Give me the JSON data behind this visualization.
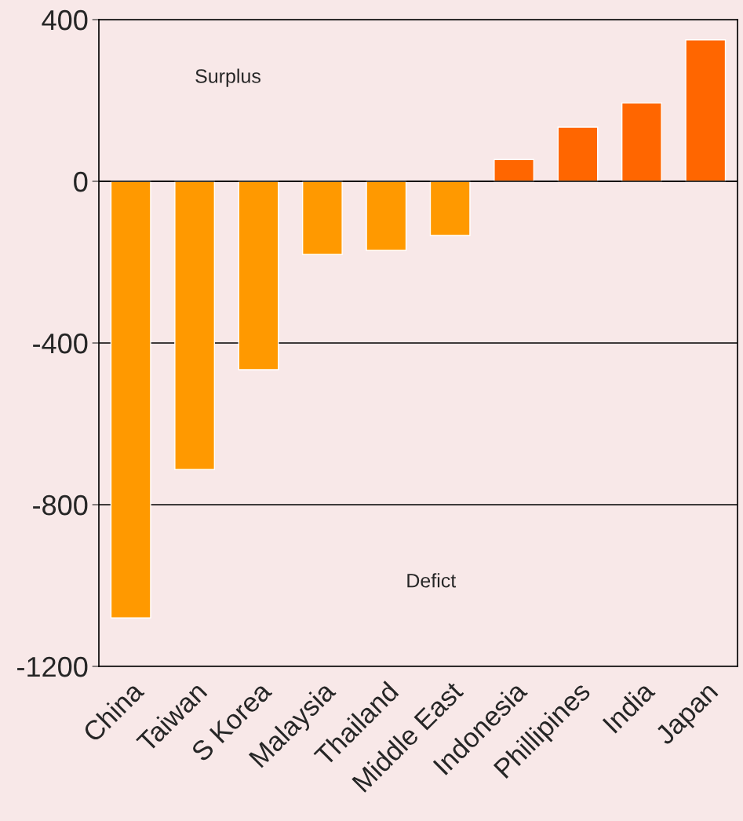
{
  "chart_data": {
    "type": "bar",
    "categories": [
      "China",
      "Taiwan",
      "S Korea",
      "Malaysia",
      "Thailand",
      "Middle East",
      "Indonesia",
      "Phillipines",
      "India",
      "Japan"
    ],
    "values": [
      -1080,
      -713,
      -466,
      -181,
      -171,
      -134,
      54,
      134,
      194,
      350
    ],
    "colors": [
      "#ff9900",
      "#ff9900",
      "#ff9900",
      "#ff9900",
      "#ff9900",
      "#ff9900",
      "#ff6600",
      "#ff6600",
      "#ff6600",
      "#ff6600"
    ],
    "ylim": [
      -1200,
      400
    ],
    "yticks": [
      -1200,
      -800,
      -400,
      0,
      400
    ],
    "grid": "y",
    "annotations": [
      "Surplus",
      "Defict"
    ]
  }
}
